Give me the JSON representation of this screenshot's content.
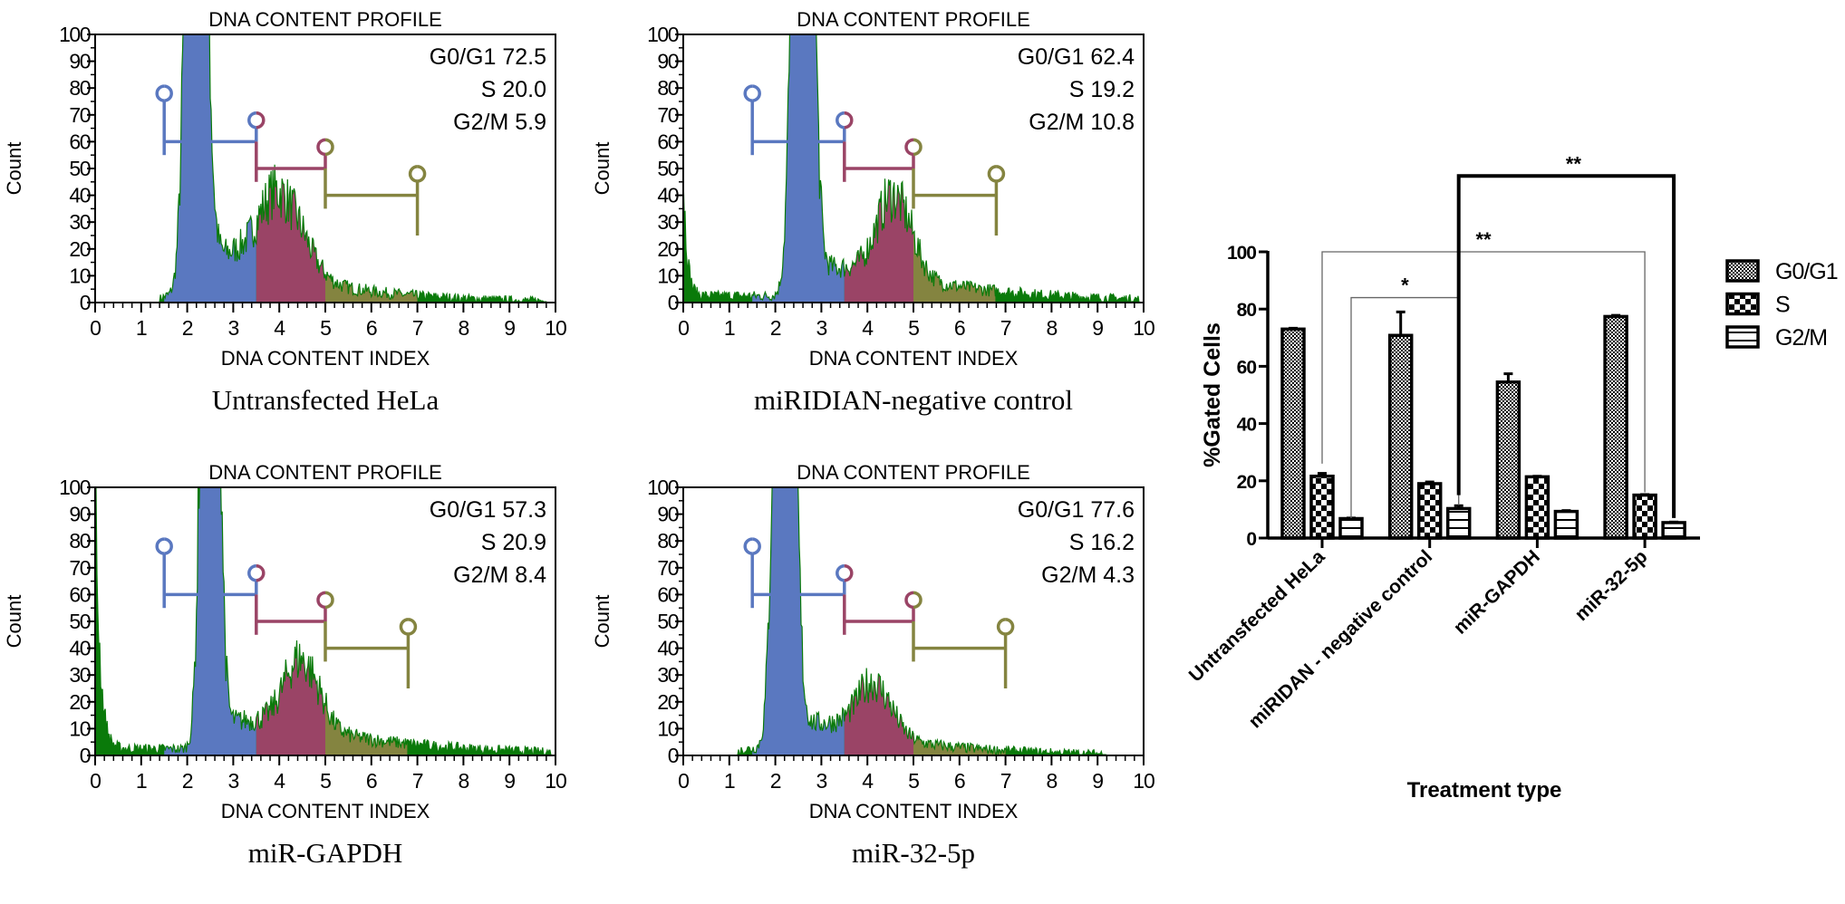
{
  "figure": {
    "histogram_title": "DNA CONTENT PROFILE",
    "histogram_xlabel": "DNA CONTENT INDEX",
    "histogram_ylabel": "Count"
  },
  "colors": {
    "g0g1_gate": "#5a78c0",
    "s_gate": "#9a4466",
    "g2m_gate": "#848440",
    "debris": "#0a7a0a"
  },
  "chart_data": [
    {
      "type": "area",
      "title": "DNA CONTENT PROFILE",
      "caption": "Untransfected HeLa",
      "xlabel": "DNA CONTENT INDEX",
      "ylabel": "Count",
      "xlim": [
        0,
        10
      ],
      "ylim": [
        0,
        100
      ],
      "xticks": [
        0,
        1,
        2,
        3,
        4,
        5,
        6,
        7,
        8,
        9,
        10
      ],
      "yticks": [
        0,
        10,
        20,
        30,
        40,
        50,
        60,
        70,
        80,
        90,
        100
      ],
      "stats": [
        {
          "phase": "G0/G1",
          "value": "72.5",
          "text": "G0/G1 72.5"
        },
        {
          "phase": "S",
          "value": "20.0",
          "text": "S 20.0"
        },
        {
          "phase": "G2/M",
          "value": "5.9",
          "text": "G2/M 5.9"
        }
      ],
      "gates": {
        "G0/G1": [
          1.5,
          3.5
        ],
        "S": [
          3.5,
          5.0
        ],
        "G2/M": [
          5.0,
          7.0
        ]
      },
      "profile": {
        "g1_peak": [
          2.2,
          0.17,
          400
        ],
        "g2_peak": [
          4.1,
          0.45,
          30
        ],
        "s_level": 18,
        "tail": [
          7,
          2.0
        ],
        "debris": [
          0,
          0.1
        ],
        "range": [
          1.4,
          9.8
        ]
      }
    },
    {
      "type": "area",
      "title": "DNA CONTENT PROFILE",
      "caption": "miRIDIAN-negative control",
      "xlabel": "DNA CONTENT INDEX",
      "ylabel": "Count",
      "xlim": [
        0,
        10
      ],
      "ylim": [
        0,
        100
      ],
      "xticks": [
        0,
        1,
        2,
        3,
        4,
        5,
        6,
        7,
        8,
        9,
        10
      ],
      "yticks": [
        0,
        10,
        20,
        30,
        40,
        50,
        60,
        70,
        80,
        90,
        100
      ],
      "stats": [
        {
          "phase": "G0/G1",
          "value": "62.4",
          "text": "G0/G1 62.4"
        },
        {
          "phase": "S",
          "value": "19.2",
          "text": "S 19.2"
        },
        {
          "phase": "G2/M",
          "value": "10.8",
          "text": "G2/M 10.8"
        }
      ],
      "gates": {
        "G0/G1": [
          1.5,
          3.5
        ],
        "S": [
          3.5,
          5.0
        ],
        "G2/M": [
          5.0,
          6.8
        ]
      },
      "profile": {
        "g1_peak": [
          2.6,
          0.17,
          400
        ],
        "g2_peak": [
          4.6,
          0.35,
          32
        ],
        "s_level": 13,
        "tail": [
          9,
          2.5
        ],
        "debris": [
          48,
          0.08
        ],
        "range": [
          0,
          9.9
        ]
      }
    },
    {
      "type": "area",
      "title": "DNA CONTENT PROFILE",
      "caption": "miR-GAPDH",
      "xlabel": "DNA CONTENT INDEX",
      "ylabel": "Count",
      "xlim": [
        0,
        10
      ],
      "ylim": [
        0,
        100
      ],
      "xticks": [
        0,
        1,
        2,
        3,
        4,
        5,
        6,
        7,
        8,
        9,
        10
      ],
      "yticks": [
        0,
        10,
        20,
        30,
        40,
        50,
        60,
        70,
        80,
        90,
        100
      ],
      "stats": [
        {
          "phase": "G0/G1",
          "value": "57.3",
          "text": "G0/G1 57.3"
        },
        {
          "phase": "S",
          "value": "20.9",
          "text": "S 20.9"
        },
        {
          "phase": "G2/M",
          "value": "8.4",
          "text": "G2/M 8.4"
        }
      ],
      "gates": {
        "G0/G1": [
          1.5,
          3.5
        ],
        "S": [
          3.5,
          5.0
        ],
        "G2/M": [
          5.0,
          6.8
        ]
      },
      "profile": {
        "g1_peak": [
          2.5,
          0.15,
          400
        ],
        "g2_peak": [
          4.5,
          0.35,
          28
        ],
        "s_level": 13,
        "tail": [
          9,
          2.5
        ],
        "debris": [
          100,
          0.1
        ],
        "range": [
          0,
          9.9
        ]
      }
    },
    {
      "type": "area",
      "title": "DNA CONTENT PROFILE",
      "caption": "miR-32-5p",
      "xlabel": "DNA CONTENT INDEX",
      "ylabel": "Count",
      "xlim": [
        0,
        10
      ],
      "ylim": [
        0,
        100
      ],
      "xticks": [
        0,
        1,
        2,
        3,
        4,
        5,
        6,
        7,
        8,
        9,
        10
      ],
      "yticks": [
        0,
        10,
        20,
        30,
        40,
        50,
        60,
        70,
        80,
        90,
        100
      ],
      "stats": [
        {
          "phase": "G0/G1",
          "value": "77.6",
          "text": "G0/G1 77.6"
        },
        {
          "phase": "S",
          "value": "16.2",
          "text": "S 16.2"
        },
        {
          "phase": "G2/M",
          "value": "4.3",
          "text": "G2/M 4.3"
        }
      ],
      "gates": {
        "G0/G1": [
          1.5,
          3.5
        ],
        "S": [
          3.5,
          5.0
        ],
        "G2/M": [
          5.0,
          7.0
        ]
      },
      "profile": {
        "g1_peak": [
          2.2,
          0.17,
          400
        ],
        "g2_peak": [
          4.2,
          0.35,
          20
        ],
        "s_level": 12,
        "tail": [
          5,
          2.0
        ],
        "debris": [
          0,
          0.1
        ],
        "range": [
          1.2,
          9.2
        ]
      }
    },
    {
      "type": "bar",
      "title": "",
      "xlabel": "Treatment type",
      "ylabel": "%Gated Cells",
      "ylim": [
        0,
        100
      ],
      "yticks": [
        0,
        20,
        40,
        60,
        80,
        100
      ],
      "categories": [
        "Untransfected HeLa",
        "miRIDAN - negative control",
        "miR-GAPDH",
        "miR-32-5p"
      ],
      "series": [
        {
          "name": "G0/G1",
          "values": [
            73.0,
            70.8,
            54.5,
            77.4
          ],
          "errors": [
            0.3,
            8.2,
            2.9,
            0.4
          ]
        },
        {
          "name": "S",
          "values": [
            21.6,
            19.0,
            21.4,
            15.0
          ],
          "errors": [
            1.0,
            0.6,
            0.2,
            0.2
          ]
        },
        {
          "name": "G2/M",
          "values": [
            6.8,
            10.3,
            9.3,
            5.4
          ],
          "errors": [
            0.2,
            1.0,
            0.3,
            0.2
          ]
        }
      ],
      "legend": {
        "position": "right",
        "entries": [
          "G0/G1",
          "S",
          "G2/M"
        ]
      },
      "significance": [
        {
          "label": "**",
          "from": [
            0,
            1
          ],
          "to": [
            3,
            1
          ],
          "level": 100,
          "from_end": 26,
          "to_end": 16,
          "weight": "thin"
        },
        {
          "label": "*",
          "from": [
            0,
            2
          ],
          "to": [
            1,
            2
          ],
          "level": 84,
          "from_end": 7,
          "to_end": 11.5,
          "weight": "thin"
        },
        {
          "label": "**",
          "from": [
            1,
            2
          ],
          "to": [
            3,
            2
          ],
          "level": 126.5,
          "from_end": 15,
          "to_end": 7,
          "weight": "thick"
        }
      ]
    }
  ]
}
